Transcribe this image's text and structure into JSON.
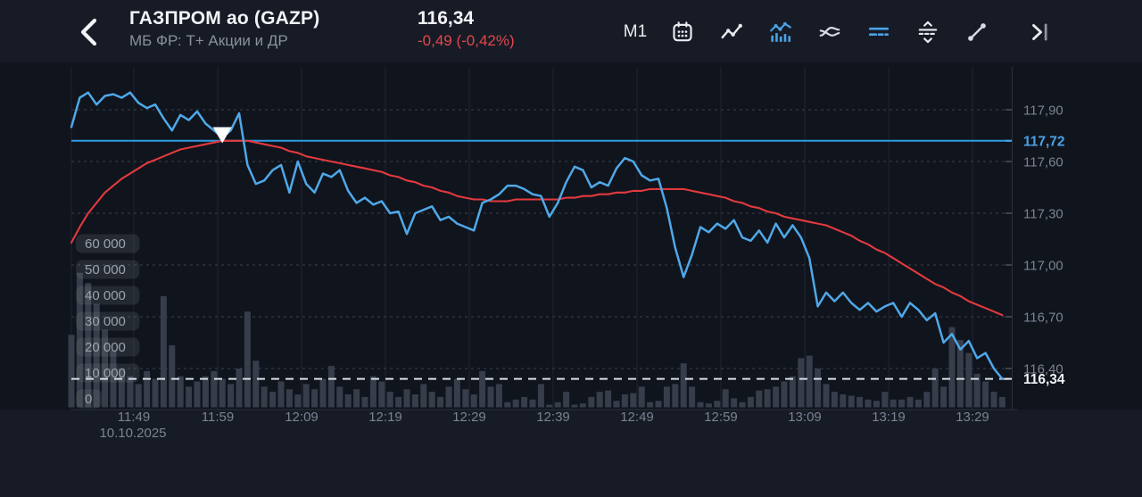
{
  "header": {
    "title": "ГАЗПРОМ ао (GAZP)",
    "subtitle": "МБ ФР: Т+ Акции и ДР",
    "price": "116,34",
    "change": "-0,49 (-0,42%)"
  },
  "toolbar": {
    "timeframe_label": "M1",
    "buttons": [
      {
        "name": "calendar-icon",
        "active": false
      },
      {
        "name": "line-chart-icon",
        "active": false
      },
      {
        "name": "line-volume-chart-icon",
        "active": true
      },
      {
        "name": "compare-lines-icon",
        "active": false
      },
      {
        "name": "price-levels-icon",
        "active": true
      },
      {
        "name": "expand-vertical-icon",
        "active": false
      },
      {
        "name": "trend-line-icon",
        "active": false
      },
      {
        "name": "skip-to-end-icon",
        "active": false
      }
    ]
  },
  "colors": {
    "background": "#171B26",
    "chart_bg": "#10141D",
    "accent_blue": "#4AA3E8",
    "price_line": "#4FA8E8",
    "reference_line_blue": "#2E9BE5",
    "ma_line": "#E23A3E",
    "negative_red": "#E2474B",
    "grid_horizontal": "#3A404D",
    "grid_vertical": "#1E2431",
    "axis_line": "#2A303C",
    "volume_bar": "#373D4A",
    "axis_text": "#7B8292",
    "pill_bg": "rgba(130,136,150,0.18)",
    "pill_text": "#9CA2AE",
    "dashed_line": "#D9DDE4",
    "marker": "#FFFFFF",
    "text_primary": "#F2F4F7"
  },
  "chart_data": {
    "type": "line",
    "title": "GAZP M1 intraday price with moving average and volume",
    "x_axis": {
      "labels": [
        "11:49",
        "11:59",
        "12:09",
        "12:19",
        "12:29",
        "12:39",
        "12:49",
        "12:59",
        "13:09",
        "13:19",
        "13:29"
      ],
      "date": "10.10.2025",
      "minutes_per_label": 10
    },
    "y_axis": {
      "ticks": [
        {
          "value": 117.9,
          "label": "117,90"
        },
        {
          "value": 117.6,
          "label": "117,60"
        },
        {
          "value": 117.3,
          "label": "117,30"
        },
        {
          "value": 117.0,
          "label": "117,00"
        },
        {
          "value": 116.7,
          "label": "116,70"
        },
        {
          "value": 116.4,
          "label": "116,40"
        }
      ]
    },
    "reference_lines": [
      {
        "value": 117.72,
        "label": "117,72",
        "style": "solid",
        "color": "#2E9BE5"
      },
      {
        "value": 116.34,
        "label": "116,34",
        "style": "dashed",
        "color": "#D9DDE4"
      }
    ],
    "volume_axis": {
      "ticks": [
        {
          "value": 60000,
          "label": "60 000"
        },
        {
          "value": 50000,
          "label": "50 000"
        },
        {
          "value": 40000,
          "label": "40 000"
        },
        {
          "value": 30000,
          "label": "30 000"
        },
        {
          "value": 20000,
          "label": "20 000"
        },
        {
          "value": 10000,
          "label": "10 000"
        },
        {
          "value": 0,
          "label": "0"
        }
      ]
    },
    "marker": {
      "shape": "triangle-down",
      "index": 18,
      "color": "#FFFFFF"
    },
    "series": [
      {
        "name": "price",
        "color": "#4FA8E8",
        "values": [
          117.8,
          117.97,
          118.0,
          117.93,
          117.98,
          117.99,
          117.97,
          118.0,
          117.94,
          117.91,
          117.93,
          117.85,
          117.78,
          117.87,
          117.84,
          117.89,
          117.82,
          117.78,
          117.74,
          117.78,
          117.88,
          117.58,
          117.47,
          117.49,
          117.55,
          117.58,
          117.42,
          117.6,
          117.47,
          117.42,
          117.53,
          117.51,
          117.55,
          117.43,
          117.36,
          117.39,
          117.35,
          117.37,
          117.3,
          117.31,
          117.18,
          117.3,
          117.32,
          117.34,
          117.26,
          117.28,
          117.24,
          117.22,
          117.2,
          117.36,
          117.38,
          117.41,
          117.46,
          117.46,
          117.44,
          117.41,
          117.4,
          117.28,
          117.36,
          117.48,
          117.57,
          117.55,
          117.45,
          117.48,
          117.46,
          117.56,
          117.62,
          117.6,
          117.52,
          117.49,
          117.5,
          117.33,
          117.1,
          116.93,
          117.06,
          117.22,
          117.19,
          117.24,
          117.21,
          117.26,
          117.16,
          117.14,
          117.2,
          117.13,
          117.24,
          117.16,
          117.23,
          117.16,
          117.04,
          116.76,
          116.84,
          116.79,
          116.84,
          116.78,
          116.74,
          116.78,
          116.73,
          116.76,
          116.78,
          116.7,
          116.78,
          116.74,
          116.68,
          116.72,
          116.55,
          116.6,
          116.51,
          116.56,
          116.46,
          116.49,
          116.4,
          116.34
        ]
      },
      {
        "name": "moving-average",
        "color": "#E23A3E",
        "values": [
          117.13,
          117.22,
          117.3,
          117.36,
          117.42,
          117.46,
          117.5,
          117.53,
          117.56,
          117.59,
          117.61,
          117.63,
          117.65,
          117.67,
          117.68,
          117.69,
          117.7,
          117.71,
          117.72,
          117.72,
          117.72,
          117.72,
          117.71,
          117.7,
          117.69,
          117.68,
          117.66,
          117.65,
          117.63,
          117.62,
          117.61,
          117.6,
          117.59,
          117.58,
          117.57,
          117.56,
          117.55,
          117.54,
          117.52,
          117.51,
          117.49,
          117.48,
          117.46,
          117.45,
          117.43,
          117.42,
          117.4,
          117.39,
          117.38,
          117.38,
          117.37,
          117.37,
          117.37,
          117.38,
          117.38,
          117.38,
          117.38,
          117.38,
          117.38,
          117.39,
          117.39,
          117.4,
          117.4,
          117.41,
          117.41,
          117.42,
          117.42,
          117.43,
          117.43,
          117.44,
          117.44,
          117.44,
          117.44,
          117.44,
          117.43,
          117.42,
          117.41,
          117.4,
          117.39,
          117.37,
          117.36,
          117.34,
          117.33,
          117.31,
          117.3,
          117.28,
          117.27,
          117.26,
          117.25,
          117.24,
          117.23,
          117.21,
          117.19,
          117.17,
          117.14,
          117.12,
          117.09,
          117.07,
          117.04,
          117.01,
          116.98,
          116.95,
          116.92,
          116.89,
          116.87,
          116.84,
          116.82,
          116.79,
          116.77,
          116.75,
          116.73,
          116.71
        ]
      }
    ],
    "volumes": [
      28000,
      52000,
      48000,
      40000,
      30000,
      22000,
      15000,
      12000,
      9000,
      14000,
      11000,
      43000,
      24000,
      12000,
      8000,
      10000,
      12000,
      14000,
      11000,
      9000,
      15000,
      37000,
      18000,
      8000,
      6000,
      10000,
      7000,
      5000,
      9000,
      7000,
      11000,
      16000,
      8000,
      5000,
      7000,
      4000,
      12000,
      10000,
      6000,
      4000,
      7000,
      5000,
      9000,
      6000,
      4000,
      8000,
      11000,
      7000,
      5000,
      14000,
      8000,
      9000,
      2000,
      3000,
      4000,
      3000,
      9000,
      1000,
      2000,
      6000,
      1000,
      1500,
      4000,
      6000,
      6500,
      2500,
      5000,
      5500,
      8000,
      2000,
      2500,
      8000,
      9000,
      17000,
      8000,
      2000,
      1500,
      2500,
      7000,
      3500,
      2000,
      4000,
      6500,
      7000,
      8000,
      10000,
      12000,
      19000,
      20000,
      15000,
      9000,
      6000,
      5000,
      4500,
      4000,
      3000,
      2500,
      6000,
      3000,
      3000,
      4000,
      3000,
      6000,
      15000,
      8000,
      31000,
      26000,
      21000,
      13000,
      10000,
      6000,
      4000
    ]
  }
}
